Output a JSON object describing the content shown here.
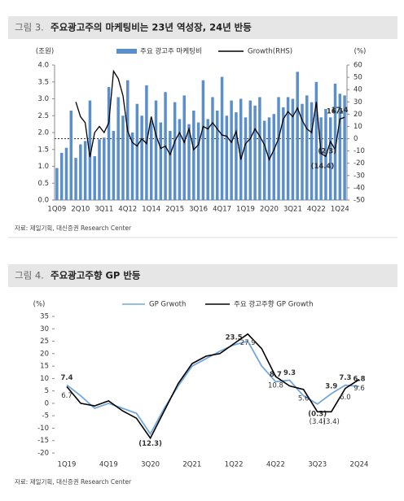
{
  "chart_data": [
    {
      "type": "bar_line",
      "figure_label": "그림 3.",
      "title": "주요광고주의 마케팅비는 23년 역성장, 24년 반등",
      "y_label": "(조원)",
      "y2_label": "(%)",
      "source": "자료: 제일기획, 대신증권 Research Center",
      "categories": [
        "1Q09",
        null,
        null,
        null,
        null,
        "2Q10",
        null,
        null,
        null,
        null,
        "3Q11",
        null,
        null,
        null,
        null,
        "4Q12",
        null,
        null,
        null,
        null,
        "1Q14",
        null,
        null,
        null,
        null,
        "2Q15",
        null,
        null,
        null,
        null,
        "3Q16",
        null,
        null,
        null,
        null,
        "4Q17",
        null,
        null,
        null,
        null,
        "1Q19",
        null,
        null,
        null,
        null,
        "2Q20",
        null,
        null,
        null,
        null,
        "3Q21",
        null,
        null,
        null,
        null,
        "4Q22",
        null,
        null,
        null,
        null,
        "1Q24",
        null
      ],
      "ylim": [
        0,
        4
      ],
      "yticks": [
        {
          "value": 0,
          "label": "0.0"
        },
        {
          "value": 0.5,
          "label": "0.5"
        },
        {
          "value": 1,
          "label": "1.0"
        },
        {
          "value": 1.5,
          "label": "1.5"
        },
        {
          "value": 2,
          "label": "2.0"
        },
        {
          "value": 2.5,
          "label": "2.5"
        },
        {
          "value": 3,
          "label": "3.0"
        },
        {
          "value": 3.5,
          "label": "3.5"
        },
        {
          "value": 4,
          "label": "4.0"
        }
      ],
      "y2lim": [
        -50,
        60
      ],
      "y2ticks": [
        -50,
        -40,
        -30,
        -20,
        -10,
        0,
        10,
        20,
        30,
        40,
        50,
        60
      ],
      "series": [
        {
          "name": "주요 광고주 마케팅비",
          "type": "bar",
          "color": "#5a8fcc",
          "values": [
            0.95,
            1.4,
            1.55,
            2.65,
            1.25,
            1.65,
            1.75,
            2.95,
            1.3,
            1.8,
            1.85,
            3.35,
            2.05,
            3.05,
            2.5,
            3.55,
            2.0,
            2.85,
            2.5,
            3.4,
            2.35,
            2.95,
            2.3,
            3.2,
            2.05,
            2.9,
            2.4,
            3.1,
            2.25,
            2.65,
            2.3,
            3.55,
            2.4,
            3.05,
            2.65,
            3.65,
            2.5,
            2.95,
            2.6,
            3.0,
            2.45,
            2.95,
            2.8,
            3.05,
            2.35,
            2.45,
            2.55,
            3.05,
            2.75,
            3.05,
            3.0,
            3.8,
            2.85,
            3.1,
            2.9,
            3.5,
            2.45,
            2.7,
            2.45,
            3.45,
            3.15,
            3.1
          ]
        },
        {
          "name": "Growth(RHS)",
          "type": "line",
          "axis": "y2",
          "color": "#000000",
          "values": [
            null,
            null,
            null,
            null,
            30,
            18,
            13,
            -15,
            5,
            10,
            5,
            13,
            55,
            49,
            35,
            6,
            -3,
            -6,
            0,
            -4,
            18,
            3,
            -8,
            -6,
            -13,
            -2,
            5,
            -3,
            8,
            -9,
            -5,
            10,
            8,
            13,
            8,
            3,
            2,
            -3,
            6,
            -17,
            -4,
            0,
            8,
            2,
            -5,
            -17,
            -9,
            0,
            16,
            22,
            18,
            25,
            15,
            8,
            5,
            30,
            -12,
            -14.4,
            -2.3,
            -9,
            16.1,
            17.4
          ],
          "value_labels": [
            null,
            null,
            null,
            null,
            null,
            null,
            null,
            null,
            null,
            null,
            null,
            null,
            null,
            null,
            null,
            null,
            null,
            null,
            null,
            null,
            null,
            null,
            null,
            null,
            null,
            null,
            null,
            null,
            null,
            null,
            null,
            null,
            null,
            null,
            null,
            null,
            null,
            null,
            null,
            null,
            null,
            null,
            null,
            null,
            null,
            null,
            null,
            null,
            null,
            null,
            null,
            null,
            null,
            null,
            null,
            null,
            null,
            "(14.4)",
            "(2.3)",
            null,
            "16.1",
            "17.4"
          ]
        }
      ]
    },
    {
      "type": "line",
      "figure_label": "그림 4.",
      "title": "주요광고주향 GP 반등",
      "y_label": "(%)",
      "source": "자료: 제일기획, 대신증권 Research Center",
      "categories": [
        "1Q19",
        null,
        null,
        "4Q19",
        null,
        null,
        "3Q20",
        null,
        null,
        "2Q21",
        null,
        null,
        "1Q22",
        null,
        null,
        "4Q22",
        null,
        null,
        "3Q23",
        null,
        null,
        "2Q24"
      ],
      "ylim": [
        -20,
        35
      ],
      "yticks": [
        -20,
        -15,
        -10,
        -5,
        0,
        5,
        10,
        15,
        20,
        25,
        30,
        35
      ],
      "series": [
        {
          "name": "GP Grwoth",
          "color": "#74a7dc",
          "values": [
            7.4,
            3,
            -2,
            0,
            -2,
            -4,
            -12.3,
            -2,
            7,
            15,
            18,
            21,
            23.5,
            25,
            15,
            8.7,
            9.3,
            3,
            -0.3,
            3.9,
            7.3,
            6.8
          ],
          "value_labels": [
            "7.4",
            null,
            null,
            null,
            null,
            null,
            "(12.3)",
            null,
            null,
            null,
            null,
            null,
            "23.5",
            null,
            null,
            "8.7",
            "9.3",
            null,
            "(0.3)",
            "3.9",
            "7.3",
            "6.8"
          ]
        },
        {
          "name": "주요 광고주향 GP Growth",
          "color": "#000000",
          "values": [
            6.7,
            0,
            -1,
            1,
            -3,
            -6,
            -14,
            -3,
            8,
            16,
            19,
            20,
            24,
            27.9,
            22,
            10.8,
            7,
            5.6,
            -3.4,
            -3.4,
            6.0,
            9.6
          ],
          "value_labels": [
            "6.7",
            null,
            null,
            null,
            null,
            null,
            null,
            null,
            null,
            null,
            null,
            null,
            null,
            "27.9",
            null,
            "10.8",
            null,
            "5.6",
            "(3.4)",
            "(3.4)",
            "6.0",
            "9.6"
          ]
        }
      ]
    }
  ]
}
